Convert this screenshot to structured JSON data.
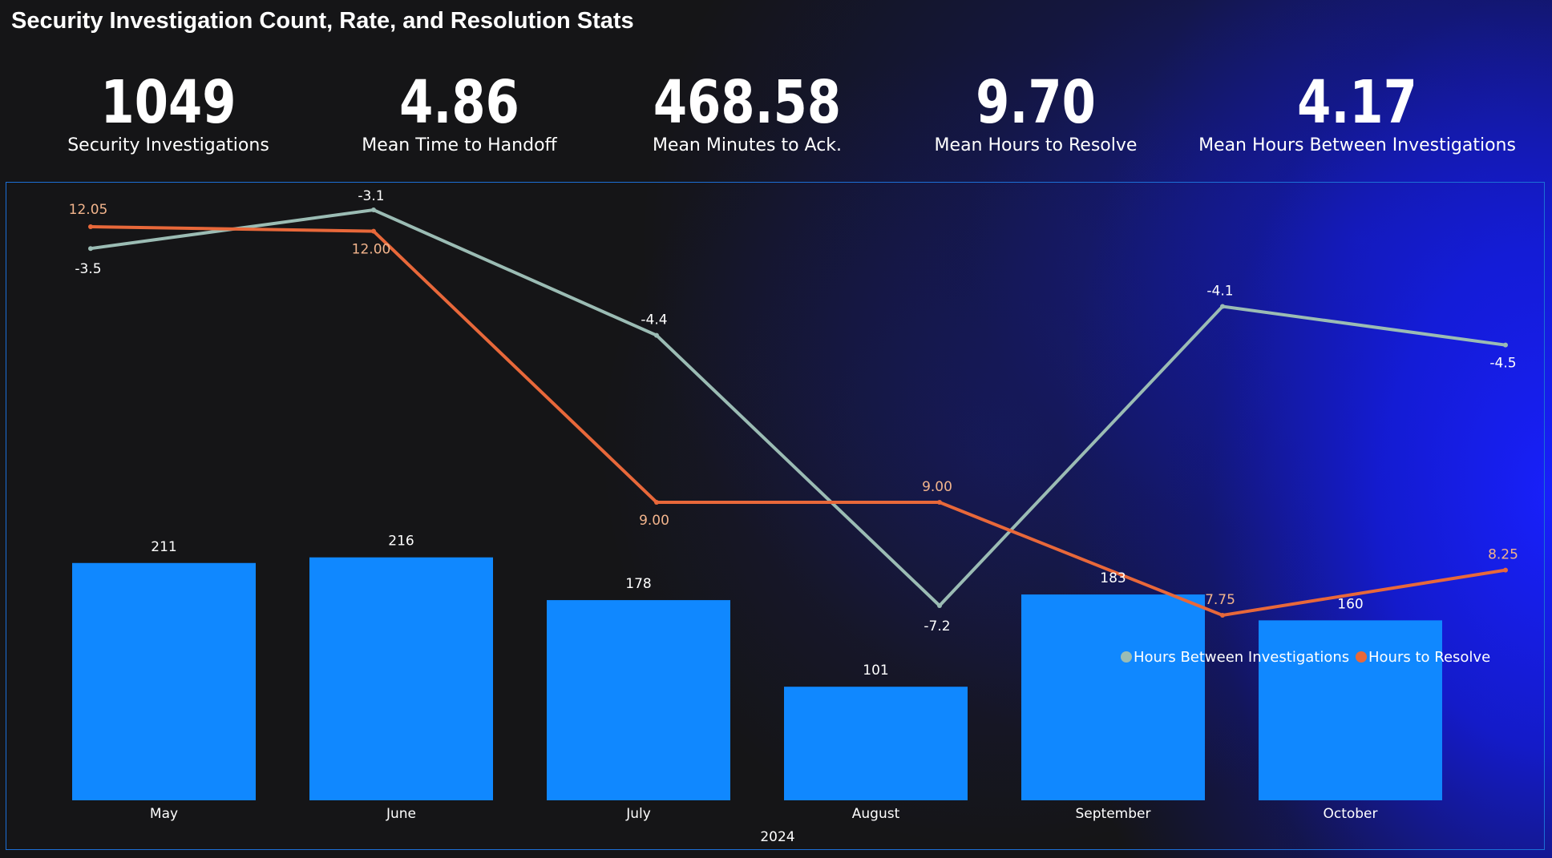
{
  "page": {
    "title": "Security Investigation Count, Rate, and Resolution Stats"
  },
  "kpis": [
    {
      "value": "1049",
      "label": "Security Investigations"
    },
    {
      "value": "4.86",
      "label": "Mean Time to Handoff"
    },
    {
      "value": "468.58",
      "label": "Mean Minutes to Ack."
    },
    {
      "value": "9.70",
      "label": "Mean Hours to Resolve"
    },
    {
      "value": "4.17",
      "label": "Mean Hours Between Investigations"
    }
  ],
  "colors": {
    "bar": "#1088ff",
    "hours_between": "#9bbcb4",
    "hours_to_resolve": "#e8683a",
    "resolve_label": "#f2b48c",
    "frame": "#1c6fd6"
  },
  "chart_data": {
    "type": "bar",
    "categories": [
      "May",
      "June",
      "July",
      "August",
      "September",
      "October"
    ],
    "xlabel": "2024",
    "bars": {
      "values": [
        211,
        216,
        178,
        101,
        183,
        160
      ],
      "labels": [
        "211",
        "216",
        "178",
        "101",
        "183",
        "160"
      ]
    },
    "lines": [
      {
        "name": "Hours Between Investigations",
        "values": [
          -3.5,
          -3.1,
          -4.4,
          -7.2,
          -4.1,
          -4.5
        ],
        "labels": [
          "-3.5",
          "-3.1",
          "-4.4",
          "-7.2",
          "-4.1",
          "-4.5"
        ],
        "color": "#9bbcb4"
      },
      {
        "name": "Hours to Resolve",
        "values": [
          12.05,
          12.0,
          9.0,
          9.0,
          7.75,
          8.25
        ],
        "labels": [
          "12.05",
          "12.00",
          "9.00",
          "9.00",
          "7.75",
          "8.25"
        ],
        "color": "#e8683a"
      }
    ],
    "legend_position": "bottom-right",
    "grid": false
  }
}
